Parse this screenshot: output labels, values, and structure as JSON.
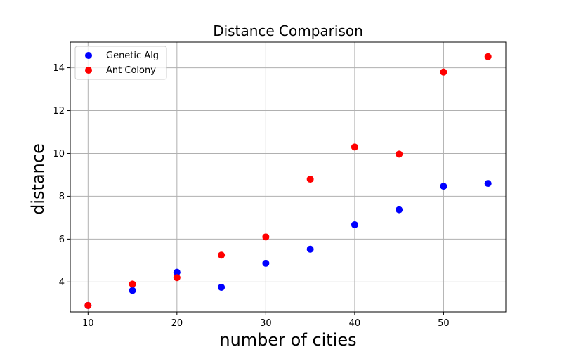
{
  "chart_data": {
    "type": "scatter",
    "title": "Distance Comparison",
    "xlabel": "number of cities",
    "ylabel": "distance",
    "xlim": [
      8,
      57
    ],
    "ylim": [
      2.6,
      15.2
    ],
    "xticks": [
      10,
      20,
      30,
      40,
      50
    ],
    "yticks": [
      4,
      6,
      8,
      10,
      12,
      14
    ],
    "grid": true,
    "legend_position": "upper-left",
    "series": [
      {
        "name": "Genetic Alg",
        "color": "#0000ff",
        "points": [
          [
            10,
            2.9
          ],
          [
            15,
            3.6
          ],
          [
            20,
            4.45
          ],
          [
            25,
            3.75
          ],
          [
            30,
            4.87
          ],
          [
            35,
            5.53
          ],
          [
            40,
            6.67
          ],
          [
            45,
            7.37
          ],
          [
            50,
            8.47
          ],
          [
            55,
            8.6
          ]
        ]
      },
      {
        "name": "Ant Colony",
        "color": "#ff0000",
        "points": [
          [
            10,
            2.9
          ],
          [
            15,
            3.9
          ],
          [
            20,
            4.2
          ],
          [
            25,
            5.25
          ],
          [
            30,
            6.1
          ],
          [
            35,
            8.8
          ],
          [
            40,
            10.3
          ],
          [
            45,
            9.97
          ],
          [
            50,
            13.8
          ],
          [
            55,
            14.52
          ]
        ]
      }
    ]
  }
}
